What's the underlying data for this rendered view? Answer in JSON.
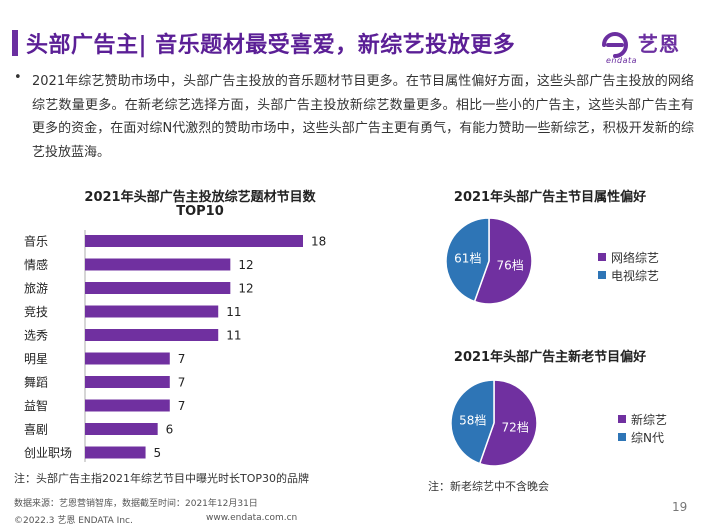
{
  "header": {
    "title": "头部广告主| 音乐题材最受喜爱，新综艺投放更多",
    "logo_text": "艺恩",
    "logo_sub": "endata"
  },
  "summary": {
    "bullet": "•",
    "text": "2021年综艺赞助市场中，头部广告主投放的音乐题材节目更多。在节目属性偏好方面，这些头部广告主投放的网络综艺数量更多。在新老综艺选择方面，头部广告主投放新综艺数量更多。相比一些小的广告主，这些头部广告主有更多的资金，在面对综N代激烈的赞助市场中，这些头部广告主更有勇气，有能力赞助一些新综艺，积极开发新的综艺投放蓝海。"
  },
  "notes": {
    "bar_note": "注：头部广告主指2021年综艺节目中曝光时长TOP30的品牌",
    "pie_note": "注：新老综艺中不含晚会"
  },
  "footer": {
    "source": "数据来源：艺恩营销智库，数据截至时间：2021年12月31日",
    "copyright": "©2022.3 艺恩 ENDATA Inc.",
    "url": "www.endata.com.cn",
    "page_number": "19"
  },
  "colors": {
    "accent": "#6b2fa0",
    "bar": "#7030a0",
    "pie_primary": "#7030a0",
    "pie_secondary": "#2e75b6",
    "pie_border": "#ffffff"
  },
  "chart_data": [
    {
      "type": "bar",
      "orientation": "horizontal",
      "title_line1": "2021年头部广告主投放综艺题材节目数",
      "title_line2": "TOP10",
      "categories": [
        "音乐",
        "情感",
        "旅游",
        "竞技",
        "选秀",
        "明星",
        "舞蹈",
        "益智",
        "喜剧",
        "创业职场"
      ],
      "values": [
        18,
        12,
        12,
        11,
        11,
        7,
        7,
        7,
        6,
        5
      ],
      "value_labels": [
        "18",
        "12",
        "12",
        "11",
        "11",
        "7",
        "7",
        "7",
        "6",
        "5"
      ],
      "xlim": [
        0,
        18
      ],
      "grid": false,
      "data_labels": true
    },
    {
      "type": "pie",
      "title": "2021年头部广告主节目属性偏好",
      "labels": [
        "网络综艺",
        "电视综艺"
      ],
      "values": [
        76,
        61
      ],
      "value_labels": [
        "76档",
        "61档"
      ],
      "legend": "right"
    },
    {
      "type": "pie",
      "title": "2021年头部广告主新老节目偏好",
      "labels": [
        "新综艺",
        "综N代"
      ],
      "values": [
        72,
        58
      ],
      "value_labels": [
        "72档",
        "58档"
      ],
      "legend": "right"
    }
  ]
}
